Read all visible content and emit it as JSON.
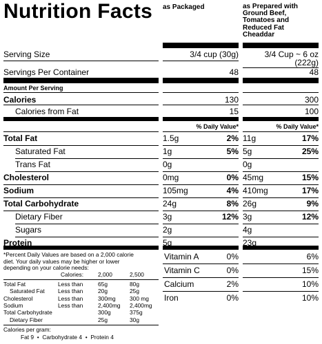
{
  "title": "Nutrition Facts",
  "col_packaged": "as Packaged",
  "col_prepared": [
    "as Prepared with",
    "Ground Beef,",
    "Tomatoes and",
    "Reduced Fat",
    "Cheaddar"
  ],
  "serving_size": {
    "label": "Serving Size",
    "packaged": "3/4 cup (30g)",
    "prepared_line1": "3/4 Cup ~ 6 oz",
    "prepared_line2": "(222g)"
  },
  "servings": {
    "label": "Servings Per Container",
    "packaged": "48",
    "prepared": "48"
  },
  "amount_per_serving": "Amount Per Serving",
  "calories": {
    "label": "Calories",
    "packaged": "130",
    "prepared": "300"
  },
  "calories_fat": {
    "label": "Calories from Fat",
    "packaged": "15",
    "prepared": "100"
  },
  "dv_header": "% Daily Value*",
  "nutrients": [
    {
      "label": "Total Fat",
      "bold": true,
      "indent": false,
      "p_amt": "1.5g",
      "p_dv": "2%",
      "q_amt": "11g",
      "q_dv": "17%"
    },
    {
      "label": "Saturated Fat",
      "bold": false,
      "indent": true,
      "p_amt": "1g",
      "p_dv": "5%",
      "q_amt": "5g",
      "q_dv": "25%"
    },
    {
      "label": "Trans Fat",
      "bold": false,
      "indent": true,
      "p_amt": "0g",
      "p_dv": "",
      "q_amt": "0g",
      "q_dv": ""
    },
    {
      "label": "Cholesterol",
      "bold": true,
      "indent": false,
      "p_amt": "0mg",
      "p_dv": "0%",
      "q_amt": "45mg",
      "q_dv": "15%"
    },
    {
      "label": "Sodium",
      "bold": true,
      "indent": false,
      "p_amt": "105mg",
      "p_dv": "4%",
      "q_amt": "410mg",
      "q_dv": "17%"
    },
    {
      "label": "Total Carbohydrate",
      "bold": true,
      "indent": false,
      "p_amt": "24g",
      "p_dv": "8%",
      "q_amt": "26g",
      "q_dv": "9%"
    },
    {
      "label": "Dietary Fiber",
      "bold": false,
      "indent": true,
      "p_amt": "3g",
      "p_dv": "12%",
      "q_amt": "3g",
      "q_dv": "12%"
    },
    {
      "label": "Sugars",
      "bold": false,
      "indent": true,
      "p_amt": "2g",
      "p_dv": "",
      "q_amt": "4g",
      "q_dv": ""
    },
    {
      "label": "Protein",
      "bold": true,
      "indent": false,
      "p_amt": "5g",
      "p_dv": "",
      "q_amt": "23g",
      "q_dv": ""
    }
  ],
  "footnote": [
    "*Percent Daily Values are based on a 2,000 calorie",
    "diet. Your daily values may be higher or lower",
    "depending on your calorie needs:"
  ],
  "ref_header": {
    "label": "Calories:",
    "a": "2,000",
    "b": "2,500"
  },
  "ref_rows": [
    {
      "n": "Total Fat",
      "q": "Less than",
      "a": "65g",
      "b": "80g",
      "indent": false
    },
    {
      "n": "Saturated Fat",
      "q": "Less than",
      "a": "20g",
      "b": "25g",
      "indent": true
    },
    {
      "n": "Cholesterol",
      "q": "Less than",
      "a": "300mg",
      "b": "300 mg",
      "indent": false
    },
    {
      "n": "Sodium",
      "q": "Less than",
      "a": "2,400mg",
      "b": "2,400mg",
      "indent": false
    },
    {
      "n": "Total Carbohydrate",
      "q": "",
      "a": "300g",
      "b": "375g",
      "indent": false
    },
    {
      "n": "Dietary Fiber",
      "q": "",
      "a": "25g",
      "b": "30g",
      "indent": true
    }
  ],
  "per_gram_label": "Calories per gram:",
  "per_gram": [
    "Fat 9",
    "Carbohydrate 4",
    "Protein 4"
  ],
  "vitamins": [
    {
      "label": "Vitamin A",
      "p": "0%",
      "q": "6%"
    },
    {
      "label": "Vitamin C",
      "p": "0%",
      "q": "15%"
    },
    {
      "label": "Calcium",
      "p": "2%",
      "q": "10%"
    },
    {
      "label": "Iron",
      "p": "0%",
      "q": "10%"
    }
  ]
}
